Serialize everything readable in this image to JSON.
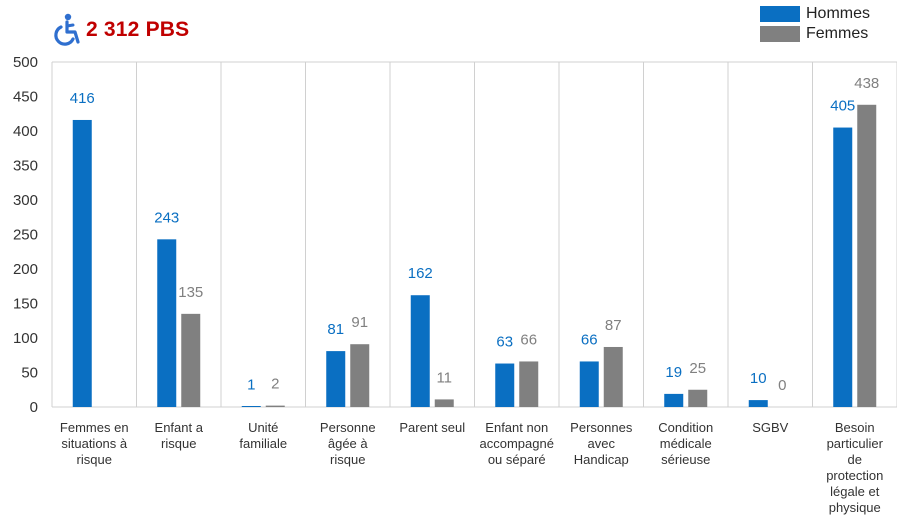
{
  "header": {
    "title": "2 312 PBS",
    "icon": "wheelchair-icon",
    "icon_color": "#2f6fcf",
    "title_color": "#c00000"
  },
  "chart_data": {
    "type": "bar",
    "title": "",
    "xlabel": "",
    "ylabel": "",
    "ylim": [
      0,
      500
    ],
    "yticks": [
      0,
      50,
      100,
      150,
      200,
      250,
      300,
      350,
      400,
      450,
      500
    ],
    "grid": "vertical lines between categories",
    "legend_position": "top-right",
    "categories": [
      "Femmes en situations à risque",
      "Enfant a risque",
      "Unité familiale",
      "Personne âgée à risque",
      "Parent seul",
      "Enfant non accompagné ou séparé",
      "Personnes avec Handicap",
      "Condition médicale sérieuse",
      "SGBV",
      "Besoin particulier de protection légale et physique"
    ],
    "category_lines": [
      [
        "Femmes en",
        "situations à",
        "risque"
      ],
      [
        "Enfant a",
        "risque"
      ],
      [
        "Unité",
        "familiale"
      ],
      [
        "Personne",
        "âgée à",
        "risque"
      ],
      [
        "Parent seul"
      ],
      [
        "Enfant non",
        "accompagné",
        "ou séparé"
      ],
      [
        "Personnes",
        "avec",
        "Handicap"
      ],
      [
        "Condition",
        "médicale",
        "sérieuse"
      ],
      [
        "SGBV"
      ],
      [
        "Besoin",
        "particulier",
        "de",
        "protection",
        "légale et",
        "physique"
      ]
    ],
    "series": [
      {
        "name": "Hommes",
        "color": "#0a6fc2",
        "values": [
          416,
          243,
          1,
          81,
          162,
          63,
          66,
          19,
          10,
          405
        ],
        "labels": [
          "416",
          "243",
          "1",
          "81",
          "162",
          "63",
          "66",
          "19",
          "10",
          "405"
        ]
      },
      {
        "name": "Femmes",
        "color": "#808080",
        "values": [
          null,
          135,
          2,
          91,
          11,
          66,
          87,
          25,
          0,
          438
        ],
        "labels": [
          "",
          "135",
          "2",
          "91",
          "11",
          "66",
          "87",
          "25",
          "0",
          "438"
        ]
      }
    ]
  }
}
